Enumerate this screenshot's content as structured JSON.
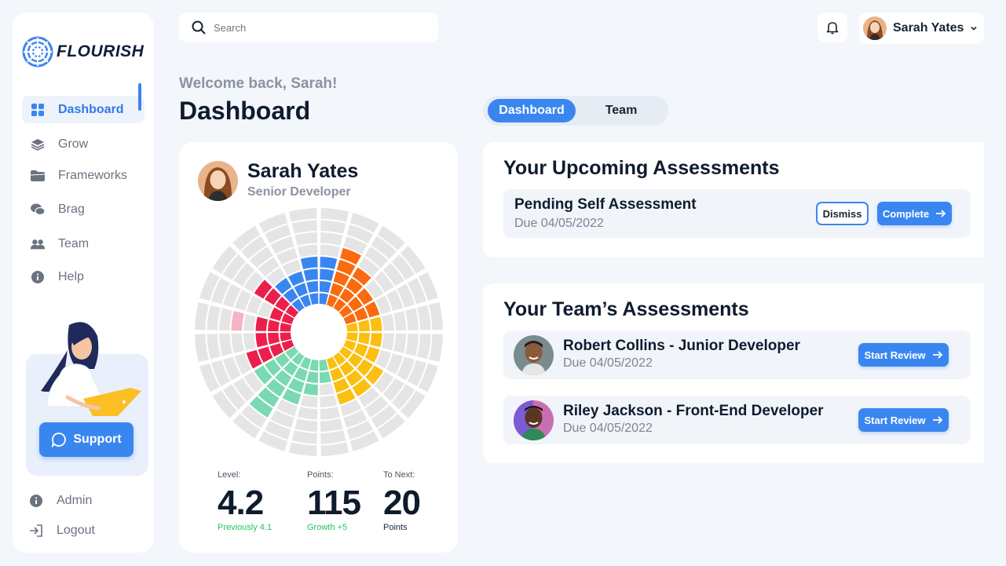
{
  "app": {
    "name": "FLOURISH"
  },
  "sidebar": {
    "items": [
      {
        "label": "Dashboard",
        "icon": "grid-icon",
        "active": true
      },
      {
        "label": "Grow",
        "icon": "layers-icon",
        "active": false
      },
      {
        "label": "Frameworks",
        "icon": "folder-icon",
        "active": false
      },
      {
        "label": "Brag",
        "icon": "chat-bubbles-icon",
        "active": false
      },
      {
        "label": "Team",
        "icon": "users-icon",
        "active": false
      },
      {
        "label": "Help",
        "icon": "info-icon",
        "active": false
      }
    ],
    "support_label": "Support",
    "bottom": [
      {
        "label": "Admin",
        "icon": "info-icon"
      },
      {
        "label": "Logout",
        "icon": "logout-icon"
      }
    ]
  },
  "header": {
    "search_placeholder": "Search",
    "user_name": "Sarah Yates",
    "welcome": "Welcome back, Sarah!",
    "title": "Dashboard",
    "tabs": [
      {
        "label": "Dashboard",
        "active": true
      },
      {
        "label": "Team",
        "active": false
      }
    ]
  },
  "profile": {
    "name": "Sarah Yates",
    "role": "Senior Developer",
    "stats": {
      "level_label": "Level:",
      "level_value": "4.2",
      "level_sub": "Previously 4.1",
      "points_label": "Points:",
      "points_value": "115",
      "points_sub": "Growth +5",
      "next_label": "To Next:",
      "next_value": "20",
      "next_sub": "Points"
    },
    "wheel": {
      "segments": 24,
      "rings": 8,
      "fill": [
        1,
        0,
        0,
        0,
        0,
        0,
        0,
        0,
        0,
        0,
        0,
        0,
        0,
        0,
        1,
        1
      ],
      "colors": {
        "blue": "#3a86f0",
        "orange": "#fb6a0e",
        "yellow": "#fbbf12",
        "green": "#7ad9b2",
        "red": "#ec1f4c",
        "pink": "#f5b3c4",
        "empty": "#e5e5e5"
      }
    }
  },
  "upcoming": {
    "title": "Your Upcoming Assessments",
    "item": {
      "title": "Pending Self Assessment",
      "due": "Due 04/05/2022",
      "dismiss": "Dismiss",
      "complete": "Complete"
    }
  },
  "team_assessments": {
    "title": "Your Team’s Assessments",
    "items": [
      {
        "name": "Robert Collins - Junior Developer",
        "due": "Due 04/05/2022",
        "action": "Start Review"
      },
      {
        "name": "Riley Jackson - Front-End Developer",
        "due": "Due 04/05/2022",
        "action": "Start Review"
      }
    ]
  }
}
